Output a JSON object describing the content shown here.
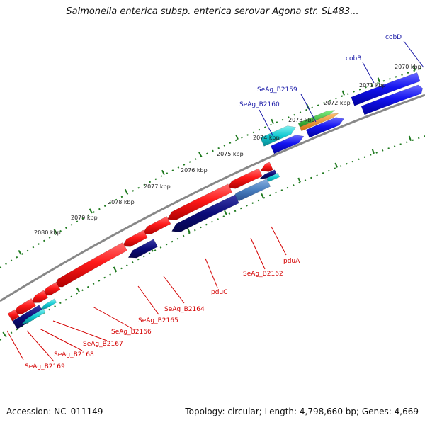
{
  "title": "Salmonella enterica subsp. enterica serovar Agona str. SL483...",
  "footer": {
    "accession": "Accession: NC_011149",
    "stats": "Topology: circular; Length: 4,798,660 bp; Genes: 4,669"
  },
  "colors": {
    "backbone": "#808080",
    "dots": "#1f7a1f",
    "label_blue": "#1a1aa8",
    "label_red": "#d40000",
    "red": "#ff1010",
    "blue": "#1414f0",
    "navy": "#0b0b78",
    "cyan": "#10c8d0",
    "steelblue": "#4a80c0",
    "green": "#30c030",
    "orange": "#f09020"
  },
  "tick_labels": [
    "2070 kbp",
    "2071 kbp",
    "2072 kbp",
    "2073 kbp",
    "2074 kbp",
    "2075 kbp",
    "2076 kbp",
    "2077 kbp",
    "2078 kbp",
    "2079 kbp",
    "2080 kbp"
  ],
  "gene_labels": {
    "top": [
      "cobD",
      "cobB",
      "SeAg_B2159",
      "SeAg_B2160"
    ],
    "bottom": [
      "pduA",
      "SeAg_B2162",
      "pduC",
      "SeAg_B2164",
      "SeAg_B2165",
      "SeAg_B2166",
      "SeAg_B2167",
      "SeAg_B2168",
      "SeAg_B2169"
    ]
  }
}
